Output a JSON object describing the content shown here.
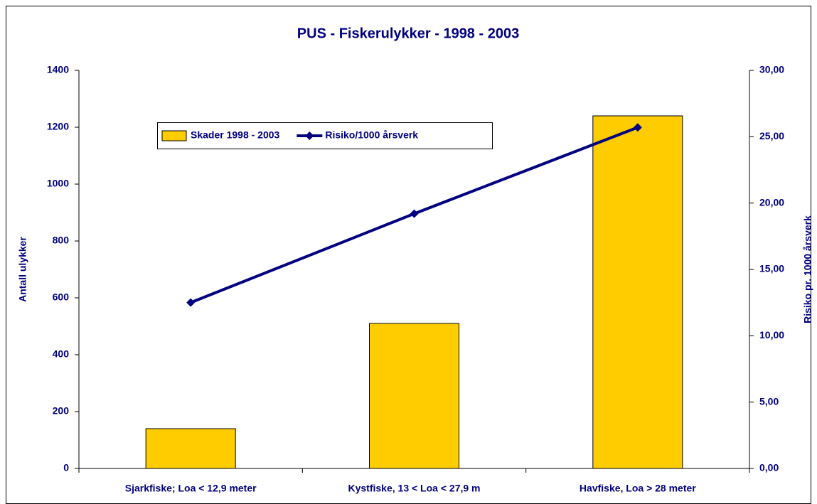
{
  "chart_data": {
    "type": "bar",
    "title": "PUS - Fiskerulykker - 1998 - 2003",
    "ylabel": "Antall ulykker",
    "y2label": "Risiko pr. 1000 årsverk",
    "categories": [
      "Sjarkfiske; Loa < 12,9 meter",
      "Kystfiske, 13 < Loa < 27,9 m",
      "Havfiske, Loa > 28 meter"
    ],
    "series": [
      {
        "name": "Skader 1998 - 2003",
        "type": "bar",
        "color": "#ffcc00",
        "values": [
          140,
          510,
          1240
        ]
      },
      {
        "name": "Risiko/1000 årsverk",
        "type": "line",
        "axis": "y2",
        "color": "#000080",
        "values": [
          12.5,
          19.2,
          25.7
        ]
      }
    ],
    "ylim": [
      0,
      1400
    ],
    "yticks": [
      0,
      200,
      400,
      600,
      800,
      1000,
      1200,
      1400
    ],
    "y2lim": [
      0,
      30
    ],
    "y2ticks": [
      {
        "value": 0,
        "label": "0,00"
      },
      {
        "value": 5,
        "label": "5,00"
      },
      {
        "value": 10,
        "label": "10,00"
      },
      {
        "value": 15,
        "label": "15,00"
      },
      {
        "value": 20,
        "label": "20,00"
      },
      {
        "value": 25,
        "label": "25,00"
      },
      {
        "value": 30,
        "label": "30,00"
      }
    ],
    "grid": false,
    "legend": "top-left"
  }
}
